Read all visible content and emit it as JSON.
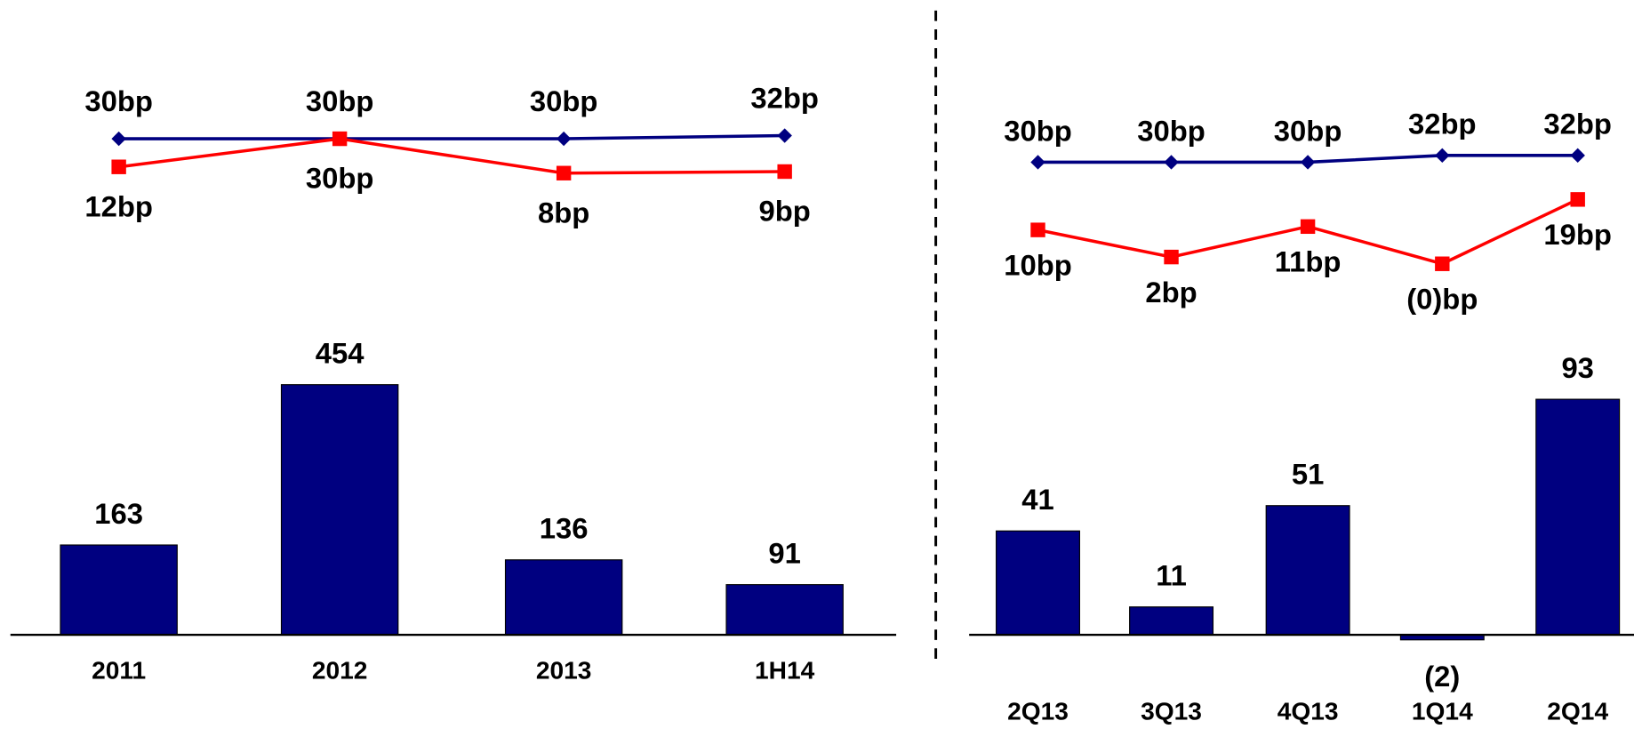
{
  "chart_data": [
    {
      "type": "bar_line",
      "categories": [
        "2011",
        "2012",
        "2013",
        "1H14"
      ],
      "series": [
        {
          "type": "bar",
          "color": "#000080",
          "values": [
            163,
            454,
            136,
            91
          ]
        },
        {
          "type": "line",
          "color": "#000080",
          "marker": "diamond",
          "values": [
            30,
            30,
            30,
            32
          ],
          "value_labels": [
            "30bp",
            "30bp",
            "30bp",
            "32bp"
          ]
        },
        {
          "type": "line",
          "color": "#ff0000",
          "marker": "square",
          "values": [
            12,
            30,
            8,
            9
          ],
          "value_labels": [
            "12bp",
            "30bp",
            "8bp",
            "9bp"
          ]
        }
      ]
    },
    {
      "type": "bar_line",
      "categories": [
        "2Q13",
        "3Q13",
        "4Q13",
        "1Q14",
        "2Q14"
      ],
      "series": [
        {
          "type": "bar",
          "color": "#000080",
          "values": [
            41,
            11,
            51,
            -2,
            93
          ],
          "value_labels": [
            "41",
            "11",
            "51",
            "(2)",
            "93"
          ]
        },
        {
          "type": "line",
          "color": "#000080",
          "marker": "diamond",
          "values": [
            30,
            30,
            30,
            32,
            32
          ],
          "value_labels": [
            "30bp",
            "30bp",
            "30bp",
            "32bp",
            "32bp"
          ]
        },
        {
          "type": "line",
          "color": "#ff0000",
          "marker": "square",
          "values": [
            10,
            2,
            11,
            0,
            19
          ],
          "value_labels": [
            "10bp",
            "2bp",
            "11bp",
            "(0)bp",
            "19bp"
          ]
        }
      ]
    }
  ]
}
